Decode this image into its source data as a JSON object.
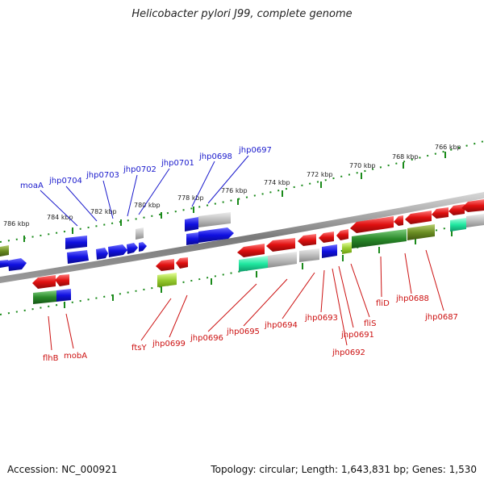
{
  "title": "Helicobacter pylori J99, complete genome",
  "footer": {
    "accession": "Accession: NC_000921",
    "summary": "Topology: circular; Length: 1,643,831 bp; Genes: 1,530"
  },
  "colors": {
    "forward_gene": "#1010e0",
    "reverse_gene": "#e01010",
    "other_gene": "#b8b8b8",
    "backbone": "#808080",
    "tick": "#1a8a1a",
    "cog_a": "#2a8a2a",
    "cog_b": "#9acd32",
    "cog_c": "#20e8a0",
    "cog_d": "#6b8e23"
  },
  "kbp_ticks": [
    "786 kbp",
    "784 kbp",
    "782 kbp",
    "780 kbp",
    "778 kbp",
    "776 kbp",
    "774 kbp",
    "772 kbp",
    "770 kbp",
    "768 kbp",
    "766 kbp"
  ],
  "genes_top": [
    "moaA",
    "jhp0704",
    "jhp0703",
    "jhp0702",
    "jhp0701",
    "jhp0698",
    "jhp0697"
  ],
  "genes_bottom": [
    "flhB",
    "mobA",
    "ftsY",
    "jhp0699",
    "jhp0696",
    "jhp0695",
    "jhp0694",
    "jhp0693",
    "jhp0692",
    "jhp0691",
    "fliS",
    "fliD",
    "jhp0688",
    "jhp0687"
  ]
}
